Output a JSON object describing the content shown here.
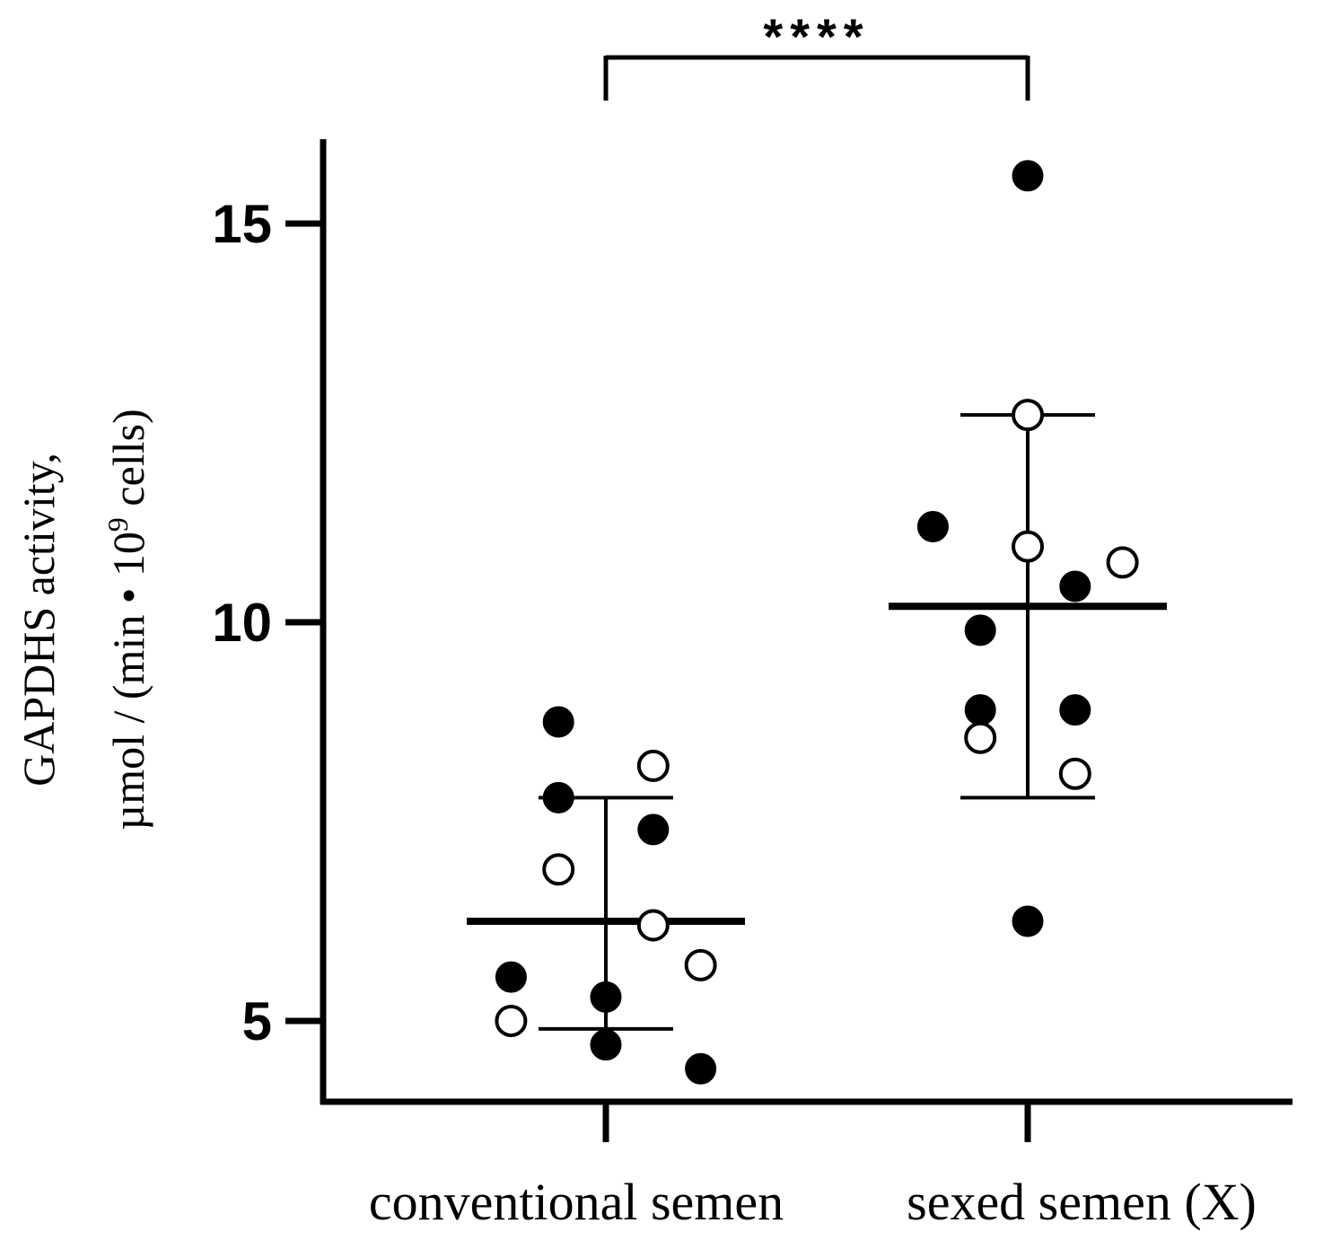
{
  "chart_data": {
    "type": "scatter",
    "title": "",
    "xlabel": "",
    "ylabel_line1": "GAPDHS activity,",
    "ylabel_line2_prefix": "µmol / (min • 10",
    "ylabel_line2_sup": "9",
    "ylabel_line2_suffix": " cells)",
    "ylim": [
      3.9,
      16
    ],
    "yticks": [
      5,
      10,
      15
    ],
    "ytick_labels": [
      "5",
      "10",
      "15"
    ],
    "categories": [
      "conventional semen",
      "sexed semen (X)"
    ],
    "significance": "****",
    "groups": [
      {
        "name": "conventional semen",
        "mean": 6.25,
        "sd_upper": 7.8,
        "sd_lower": 4.9,
        "points": [
          {
            "offset": -0.22,
            "y": 8.75,
            "filled": true
          },
          {
            "offset": 0.22,
            "y": 8.2,
            "filled": false
          },
          {
            "offset": -0.22,
            "y": 7.8,
            "filled": true
          },
          {
            "offset": 0.22,
            "y": 7.4,
            "filled": true
          },
          {
            "offset": -0.22,
            "y": 6.9,
            "filled": false
          },
          {
            "offset": 0.22,
            "y": 6.2,
            "filled": false
          },
          {
            "offset": 0.44,
            "y": 5.7,
            "filled": false
          },
          {
            "offset": -0.44,
            "y": 5.55,
            "filled": true
          },
          {
            "offset": 0.0,
            "y": 5.3,
            "filled": true
          },
          {
            "offset": -0.44,
            "y": 5.0,
            "filled": false
          },
          {
            "offset": 0.0,
            "y": 4.7,
            "filled": true
          },
          {
            "offset": 0.44,
            "y": 4.4,
            "filled": true
          }
        ]
      },
      {
        "name": "sexed semen (X)",
        "mean": 10.2,
        "sd_upper": 12.6,
        "sd_lower": 7.8,
        "points": [
          {
            "offset": 0.0,
            "y": 15.6,
            "filled": true
          },
          {
            "offset": 0.0,
            "y": 12.6,
            "filled": false
          },
          {
            "offset": -0.44,
            "y": 11.2,
            "filled": true
          },
          {
            "offset": 0.0,
            "y": 10.95,
            "filled": false
          },
          {
            "offset": 0.44,
            "y": 10.75,
            "filled": false
          },
          {
            "offset": 0.22,
            "y": 10.45,
            "filled": true
          },
          {
            "offset": -0.22,
            "y": 9.9,
            "filled": true
          },
          {
            "offset": -0.22,
            "y": 8.9,
            "filled": true
          },
          {
            "offset": 0.22,
            "y": 8.9,
            "filled": true
          },
          {
            "offset": -0.22,
            "y": 8.55,
            "filled": false
          },
          {
            "offset": 0.22,
            "y": 8.1,
            "filled": false
          },
          {
            "offset": 0.0,
            "y": 6.25,
            "filled": true
          }
        ]
      }
    ]
  }
}
